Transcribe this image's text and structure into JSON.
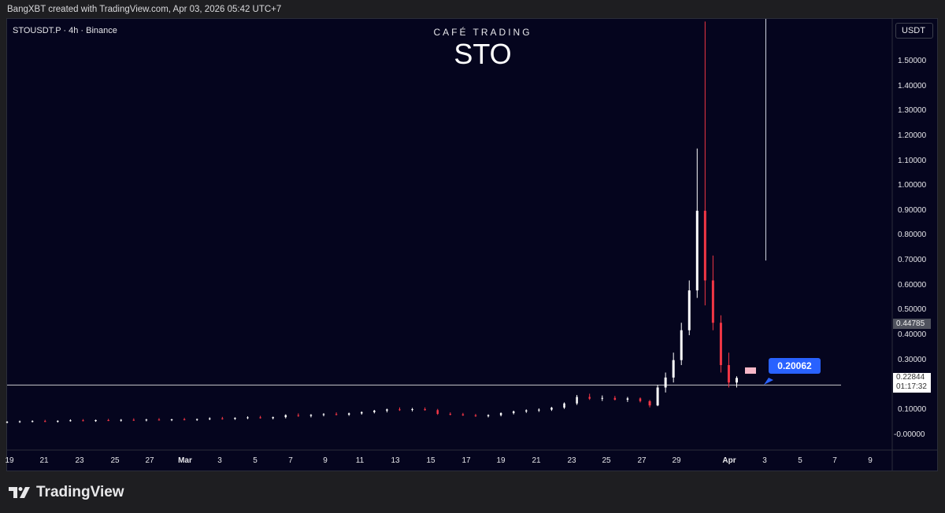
{
  "header": {
    "text": "BangXBT created with TradingView.com, Apr 03, 2026 05:42 UTC+7"
  },
  "symbol": {
    "text": "STOUSDT.P · 4h · Binance"
  },
  "brand": {
    "subtitle": "CAFÉ TRADING",
    "title": "STO"
  },
  "currency_button": "USDT",
  "price_tags": {
    "mark": "0.44785",
    "last": "0.22844",
    "countdown": "01:17:32"
  },
  "callout": "0.20062",
  "footer": {
    "logo_text": "TradingView",
    "logo_icon": "tradingview-logo-icon"
  },
  "colors": {
    "background": "#05051e",
    "up": "#ffffff",
    "down": "#f23645",
    "callout": "#2962ff"
  },
  "chart_data": {
    "type": "candlestick",
    "title": "",
    "y_tick_labels": [
      "1.50000",
      "1.40000",
      "1.30000",
      "1.20000",
      "1.10000",
      "1.00000",
      "0.90000",
      "0.80000",
      "0.70000",
      "0.60000",
      "0.50000",
      "0.40000",
      "0.30000",
      "0.20000",
      "0.10000",
      "-0.00000"
    ],
    "x_tick_labels": [
      "19",
      "21",
      "23",
      "25",
      "27",
      "Mar",
      "3",
      "5",
      "7",
      "9",
      "11",
      "13",
      "15",
      "17",
      "19",
      "21",
      "23",
      "25",
      "27",
      "29",
      "Apr",
      "3",
      "5",
      "7",
      "9"
    ],
    "x_bold_labels": [
      "Mar",
      "Apr"
    ],
    "ylim": [
      -0.03,
      1.66
    ],
    "horizontal_line": 0.2,
    "spike_high": 1.66,
    "candles": [
      {
        "t": 0,
        "o": 0.05,
        "h": 0.055,
        "l": 0.046,
        "c": 0.052
      },
      {
        "t": 8,
        "o": 0.052,
        "h": 0.057,
        "l": 0.048,
        "c": 0.054
      },
      {
        "t": 16,
        "o": 0.054,
        "h": 0.058,
        "l": 0.05,
        "c": 0.055
      },
      {
        "t": 24,
        "o": 0.055,
        "h": 0.06,
        "l": 0.051,
        "c": 0.053
      },
      {
        "t": 32,
        "o": 0.053,
        "h": 0.058,
        "l": 0.049,
        "c": 0.056
      },
      {
        "t": 40,
        "o": 0.056,
        "h": 0.062,
        "l": 0.053,
        "c": 0.058
      },
      {
        "t": 48,
        "o": 0.058,
        "h": 0.063,
        "l": 0.054,
        "c": 0.055
      },
      {
        "t": 56,
        "o": 0.055,
        "h": 0.061,
        "l": 0.052,
        "c": 0.059
      },
      {
        "t": 64,
        "o": 0.059,
        "h": 0.064,
        "l": 0.055,
        "c": 0.057
      },
      {
        "t": 72,
        "o": 0.057,
        "h": 0.063,
        "l": 0.053,
        "c": 0.06
      },
      {
        "t": 80,
        "o": 0.06,
        "h": 0.066,
        "l": 0.056,
        "c": 0.058
      },
      {
        "t": 88,
        "o": 0.058,
        "h": 0.064,
        "l": 0.054,
        "c": 0.061
      },
      {
        "t": 96,
        "o": 0.061,
        "h": 0.067,
        "l": 0.057,
        "c": 0.059
      },
      {
        "t": 104,
        "o": 0.059,
        "h": 0.064,
        "l": 0.055,
        "c": 0.062
      },
      {
        "t": 112,
        "o": 0.062,
        "h": 0.068,
        "l": 0.058,
        "c": 0.06
      },
      {
        "t": 120,
        "o": 0.06,
        "h": 0.065,
        "l": 0.056,
        "c": 0.063
      },
      {
        "t": 128,
        "o": 0.063,
        "h": 0.07,
        "l": 0.059,
        "c": 0.066
      },
      {
        "t": 136,
        "o": 0.066,
        "h": 0.072,
        "l": 0.061,
        "c": 0.064
      },
      {
        "t": 144,
        "o": 0.064,
        "h": 0.07,
        "l": 0.06,
        "c": 0.068
      },
      {
        "t": 152,
        "o": 0.068,
        "h": 0.074,
        "l": 0.063,
        "c": 0.07
      },
      {
        "t": 160,
        "o": 0.07,
        "h": 0.076,
        "l": 0.065,
        "c": 0.067
      },
      {
        "t": 168,
        "o": 0.067,
        "h": 0.073,
        "l": 0.062,
        "c": 0.071
      },
      {
        "t": 176,
        "o": 0.071,
        "h": 0.082,
        "l": 0.066,
        "c": 0.079
      },
      {
        "t": 184,
        "o": 0.079,
        "h": 0.086,
        "l": 0.072,
        "c": 0.076
      },
      {
        "t": 192,
        "o": 0.076,
        "h": 0.083,
        "l": 0.07,
        "c": 0.08
      },
      {
        "t": 200,
        "o": 0.08,
        "h": 0.087,
        "l": 0.074,
        "c": 0.083
      },
      {
        "t": 208,
        "o": 0.083,
        "h": 0.09,
        "l": 0.078,
        "c": 0.081
      },
      {
        "t": 216,
        "o": 0.081,
        "h": 0.089,
        "l": 0.076,
        "c": 0.086
      },
      {
        "t": 224,
        "o": 0.086,
        "h": 0.094,
        "l": 0.081,
        "c": 0.091
      },
      {
        "t": 232,
        "o": 0.091,
        "h": 0.1,
        "l": 0.086,
        "c": 0.097
      },
      {
        "t": 240,
        "o": 0.097,
        "h": 0.105,
        "l": 0.09,
        "c": 0.102
      },
      {
        "t": 248,
        "o": 0.102,
        "h": 0.11,
        "l": 0.096,
        "c": 0.1
      },
      {
        "t": 256,
        "o": 0.1,
        "h": 0.108,
        "l": 0.094,
        "c": 0.103
      },
      {
        "t": 264,
        "o": 0.103,
        "h": 0.11,
        "l": 0.097,
        "c": 0.099
      },
      {
        "t": 272,
        "o": 0.099,
        "h": 0.104,
        "l": 0.08,
        "c": 0.084
      },
      {
        "t": 280,
        "o": 0.084,
        "h": 0.09,
        "l": 0.078,
        "c": 0.082
      },
      {
        "t": 288,
        "o": 0.082,
        "h": 0.088,
        "l": 0.076,
        "c": 0.078
      },
      {
        "t": 296,
        "o": 0.078,
        "h": 0.084,
        "l": 0.072,
        "c": 0.075
      },
      {
        "t": 304,
        "o": 0.075,
        "h": 0.082,
        "l": 0.07,
        "c": 0.079
      },
      {
        "t": 312,
        "o": 0.079,
        "h": 0.09,
        "l": 0.074,
        "c": 0.087
      },
      {
        "t": 320,
        "o": 0.087,
        "h": 0.097,
        "l": 0.082,
        "c": 0.094
      },
      {
        "t": 328,
        "o": 0.094,
        "h": 0.102,
        "l": 0.088,
        "c": 0.098
      },
      {
        "t": 336,
        "o": 0.098,
        "h": 0.106,
        "l": 0.092,
        "c": 0.101
      },
      {
        "t": 344,
        "o": 0.101,
        "h": 0.112,
        "l": 0.096,
        "c": 0.109
      },
      {
        "t": 352,
        "o": 0.109,
        "h": 0.13,
        "l": 0.104,
        "c": 0.126
      },
      {
        "t": 360,
        "o": 0.126,
        "h": 0.16,
        "l": 0.12,
        "c": 0.152
      },
      {
        "t": 368,
        "o": 0.152,
        "h": 0.165,
        "l": 0.14,
        "c": 0.145
      },
      {
        "t": 376,
        "o": 0.145,
        "h": 0.158,
        "l": 0.136,
        "c": 0.148
      },
      {
        "t": 384,
        "o": 0.148,
        "h": 0.156,
        "l": 0.138,
        "c": 0.141
      },
      {
        "t": 392,
        "o": 0.141,
        "h": 0.152,
        "l": 0.132,
        "c": 0.146
      },
      {
        "t": 400,
        "o": 0.146,
        "h": 0.15,
        "l": 0.13,
        "c": 0.135
      },
      {
        "t": 406,
        "o": 0.135,
        "h": 0.14,
        "l": 0.11,
        "c": 0.118
      },
      {
        "t": 410,
        "o": 0.118,
        "h": 0.2,
        "l": 0.115,
        "c": 0.19
      },
      {
        "t": 414,
        "o": 0.19,
        "h": 0.25,
        "l": 0.17,
        "c": 0.23
      },
      {
        "t": 418,
        "o": 0.23,
        "h": 0.33,
        "l": 0.21,
        "c": 0.3
      },
      {
        "t": 422,
        "o": 0.3,
        "h": 0.45,
        "l": 0.28,
        "c": 0.42
      },
      {
        "t": 426,
        "o": 0.42,
        "h": 0.62,
        "l": 0.4,
        "c": 0.58
      },
      {
        "t": 430,
        "o": 0.58,
        "h": 1.15,
        "l": 0.55,
        "c": 0.9
      },
      {
        "t": 434,
        "o": 0.9,
        "h": 1.66,
        "l": 0.52,
        "c": 0.62
      },
      {
        "t": 438,
        "o": 0.62,
        "h": 0.72,
        "l": 0.42,
        "c": 0.45
      },
      {
        "t": 442,
        "o": 0.45,
        "h": 0.48,
        "l": 0.25,
        "c": 0.28
      },
      {
        "t": 446,
        "o": 0.28,
        "h": 0.33,
        "l": 0.19,
        "c": 0.21
      },
      {
        "t": 450,
        "o": 0.21,
        "h": 0.235,
        "l": 0.19,
        "c": 0.2284
      }
    ]
  }
}
